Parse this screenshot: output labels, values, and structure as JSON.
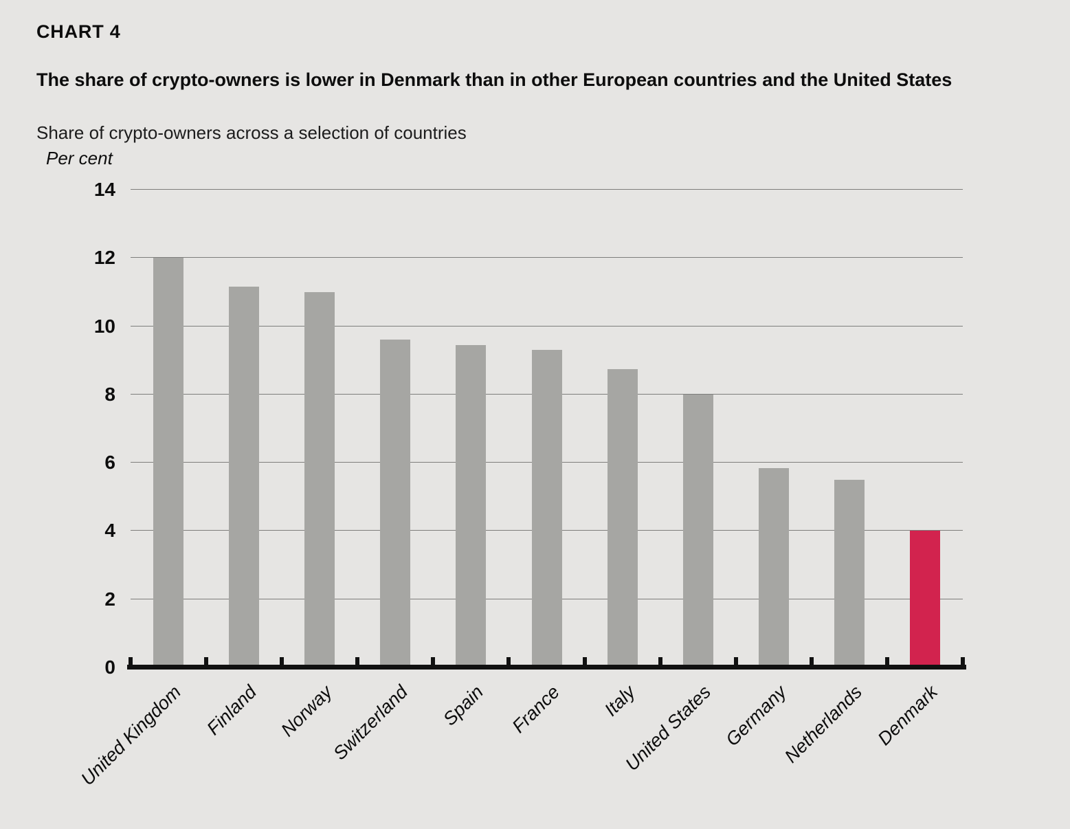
{
  "page": {
    "background": "#e6e5e3",
    "text_color": "#0d0d0d"
  },
  "chart_data": {
    "type": "bar",
    "chart_label": "CHART 4",
    "title": "The share of crypto-owners is lower in Denmark than in other European countries and the United States",
    "subtitle": "Share of crypto-owners across a selection of countries",
    "unit_label": "Per cent",
    "categories": [
      "United Kingdom",
      "Finland",
      "Norway",
      "Switzerland",
      "Spain",
      "France",
      "Italy",
      "United States",
      "Germany",
      "Netherlands",
      "Denmark"
    ],
    "values": [
      12,
      11.15,
      11,
      9.6,
      9.45,
      9.3,
      8.75,
      8,
      5.85,
      5.5,
      4
    ],
    "highlight_category": "Denmark",
    "bar_color": "#a6a6a3",
    "highlight_color": "#d2234e",
    "gridline_color": "#7d7d7b",
    "axis_color": "#111111",
    "xlabel": "",
    "ylabel": "Per cent",
    "ylim": [
      0,
      14
    ],
    "yticks": [
      0,
      2,
      4,
      6,
      8,
      10,
      12,
      14
    ],
    "grid": true,
    "legend_position": "none"
  }
}
